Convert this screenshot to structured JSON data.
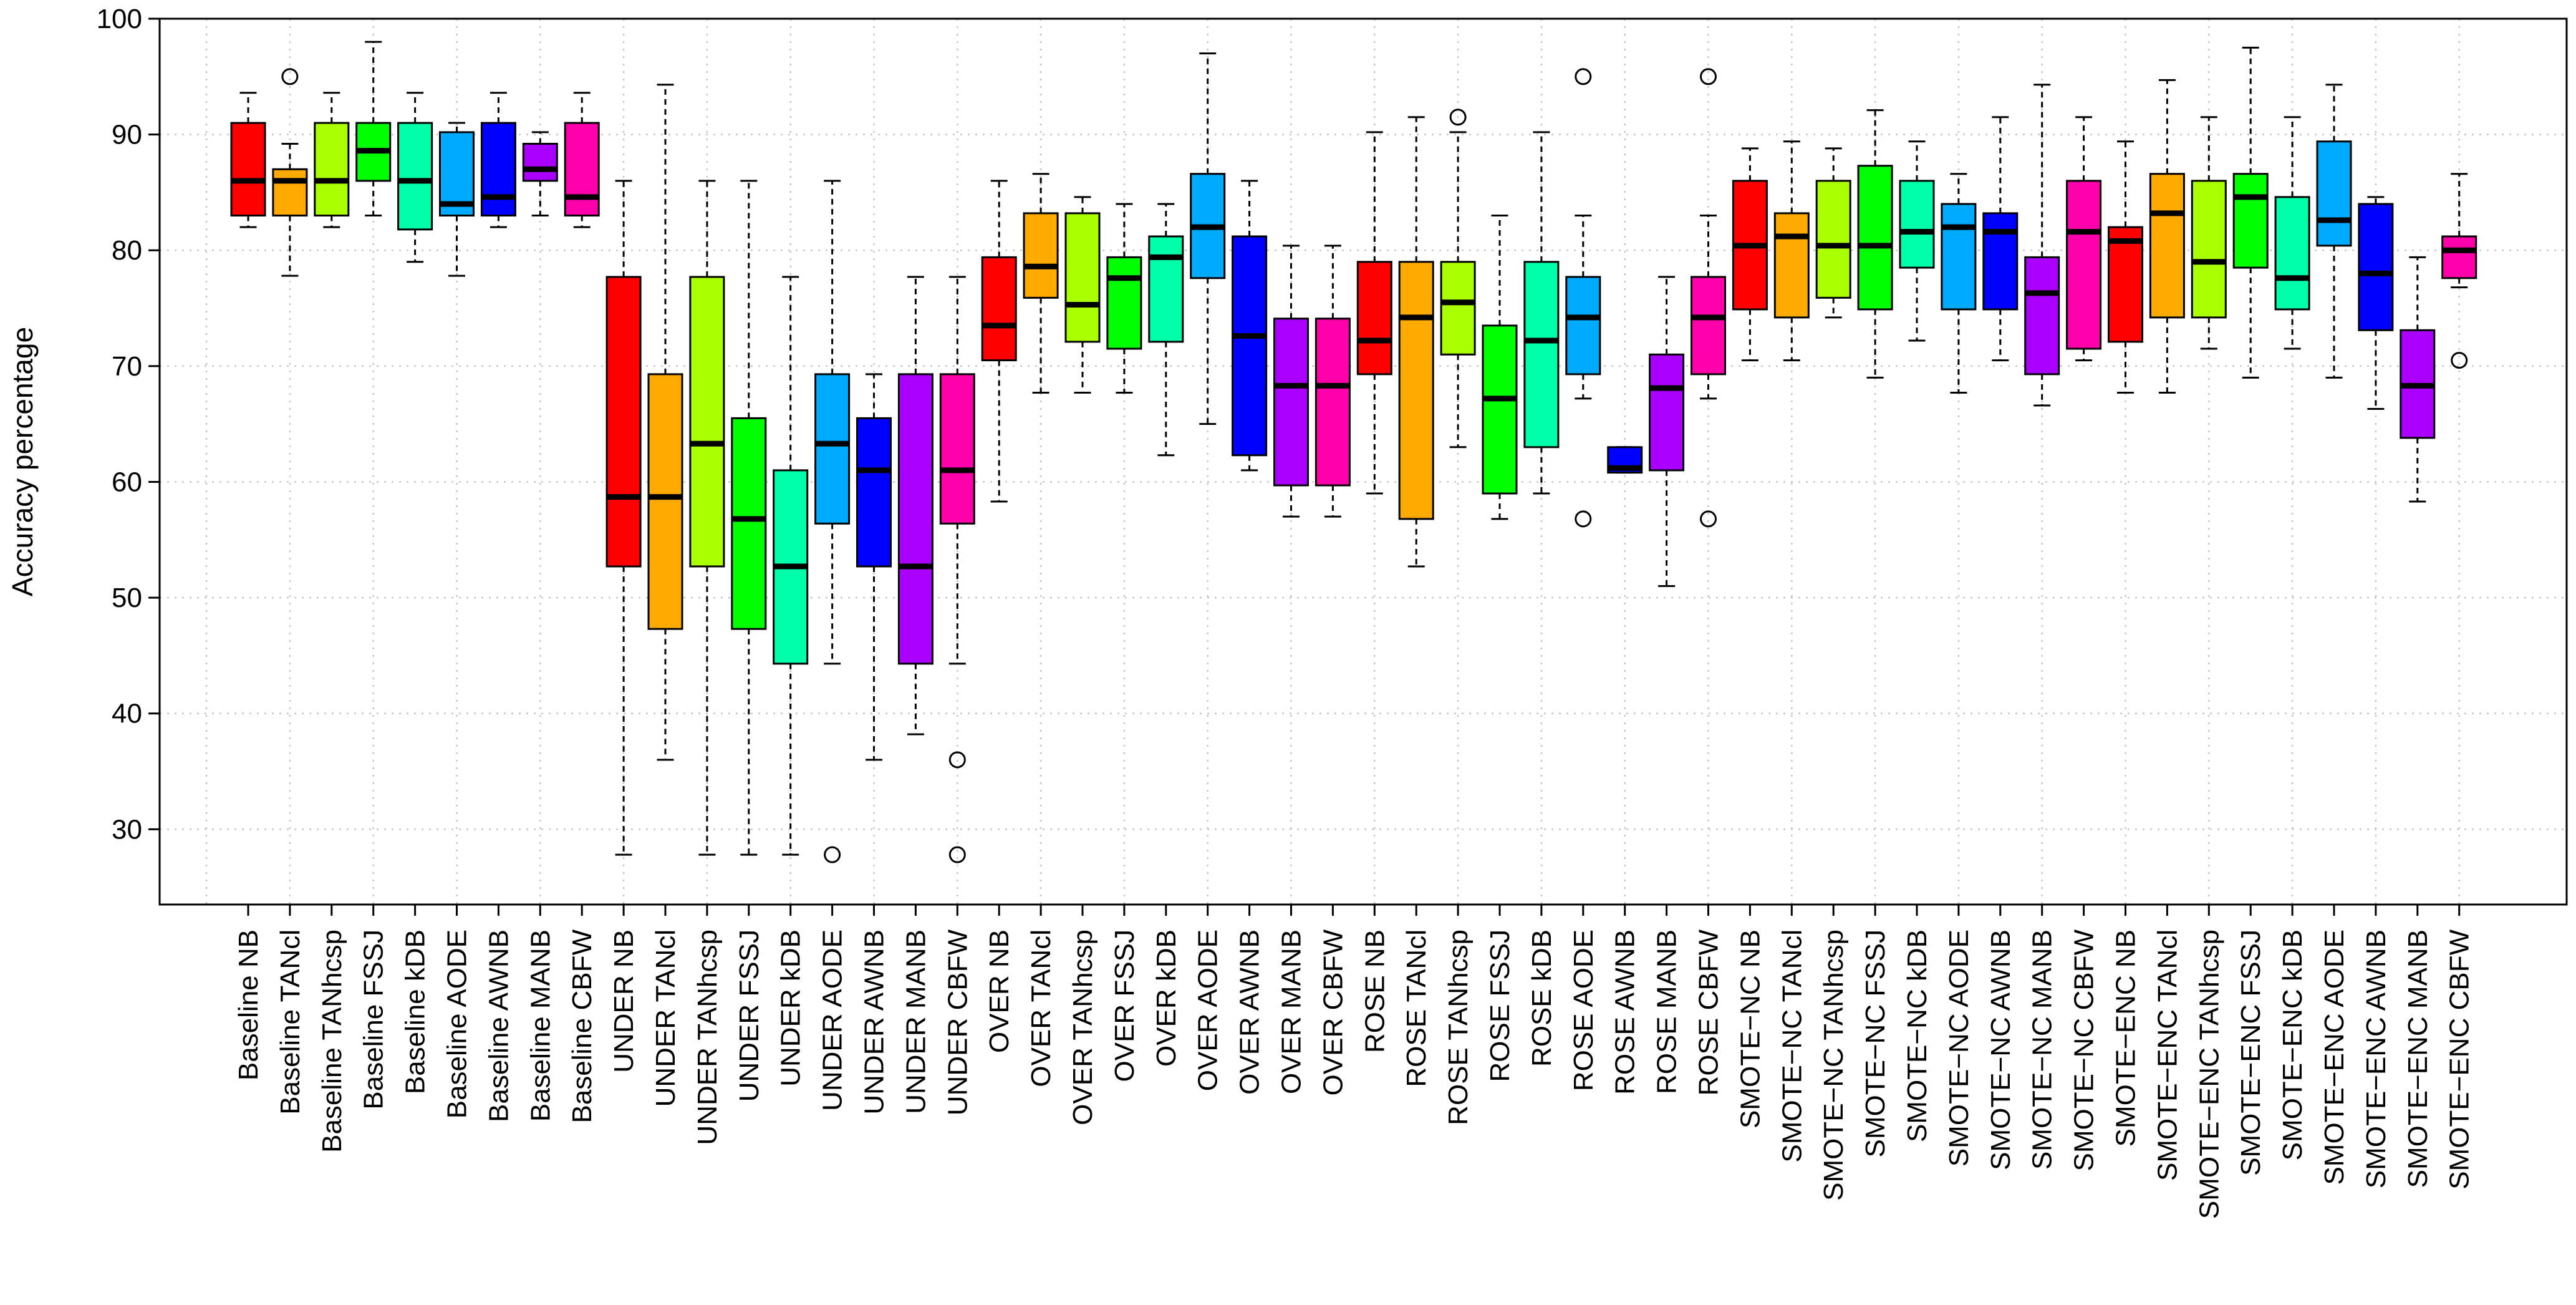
{
  "chart_data": {
    "type": "boxplot",
    "title": "",
    "xlabel": "",
    "ylabel": "Accuracy percentage",
    "ylim": [
      23.5,
      100
    ],
    "yticks": [
      30,
      40,
      50,
      60,
      70,
      80,
      90,
      100
    ],
    "grid": true,
    "boxes": [
      {
        "label": "Baseline NB",
        "color": "#FF0000",
        "min": 82,
        "q1": 83,
        "median": 86,
        "q3": 91,
        "max": 93.6,
        "outliers": []
      },
      {
        "label": "Baseline TANcl",
        "color": "#FFAA00",
        "min": 77.8,
        "q1": 83,
        "median": 86,
        "q3": 87,
        "max": 89.2,
        "outliers": [
          95
        ]
      },
      {
        "label": "Baseline TANhcsp",
        "color": "#AAFF00",
        "min": 82,
        "q1": 83,
        "median": 86,
        "q3": 91,
        "max": 93.6,
        "outliers": []
      },
      {
        "label": "Baseline FSSJ",
        "color": "#00FF00",
        "min": 83,
        "q1": 86,
        "median": 88.6,
        "q3": 91,
        "max": 98,
        "outliers": []
      },
      {
        "label": "Baseline kDB",
        "color": "#00FFAA",
        "min": 79,
        "q1": 81.8,
        "median": 86,
        "q3": 91,
        "max": 93.6,
        "outliers": []
      },
      {
        "label": "Baseline AODE",
        "color": "#00AAFF",
        "min": 77.8,
        "q1": 83,
        "median": 84,
        "q3": 90.2,
        "max": 91,
        "outliers": []
      },
      {
        "label": "Baseline AWNB",
        "color": "#0000FF",
        "min": 82,
        "q1": 83,
        "median": 84.6,
        "q3": 91,
        "max": 93.6,
        "outliers": []
      },
      {
        "label": "Baseline MANB",
        "color": "#AA00FF",
        "min": 83,
        "q1": 86,
        "median": 87,
        "q3": 89.2,
        "max": 90.2,
        "outliers": []
      },
      {
        "label": "Baseline CBFW",
        "color": "#FF00AA",
        "min": 82,
        "q1": 83,
        "median": 84.6,
        "q3": 91,
        "max": 93.6,
        "outliers": []
      },
      {
        "label": "UNDER NB",
        "color": "#FF0000",
        "min": 27.8,
        "q1": 52.7,
        "median": 58.7,
        "q3": 77.7,
        "max": 86,
        "outliers": []
      },
      {
        "label": "UNDER TANcl",
        "color": "#FFAA00",
        "min": 36,
        "q1": 47.3,
        "median": 58.7,
        "q3": 69.3,
        "max": 94.3,
        "outliers": []
      },
      {
        "label": "UNDER TANhcsp",
        "color": "#AAFF00",
        "min": 27.8,
        "q1": 52.7,
        "median": 63.3,
        "q3": 77.7,
        "max": 86,
        "outliers": []
      },
      {
        "label": "UNDER FSSJ",
        "color": "#00FF00",
        "min": 27.8,
        "q1": 47.3,
        "median": 56.8,
        "q3": 65.5,
        "max": 86,
        "outliers": []
      },
      {
        "label": "UNDER kDB",
        "color": "#00FFAA",
        "min": 27.8,
        "q1": 44.3,
        "median": 52.7,
        "q3": 61,
        "max": 77.7,
        "outliers": []
      },
      {
        "label": "UNDER AODE",
        "color": "#00AAFF",
        "min": 44.3,
        "q1": 56.4,
        "median": 63.3,
        "q3": 69.3,
        "max": 86,
        "outliers": [
          27.8
        ]
      },
      {
        "label": "UNDER AWNB",
        "color": "#0000FF",
        "min": 36,
        "q1": 52.7,
        "median": 61,
        "q3": 65.5,
        "max": 69.3,
        "outliers": []
      },
      {
        "label": "UNDER MANB",
        "color": "#AA00FF",
        "min": 38.2,
        "q1": 44.3,
        "median": 52.7,
        "q3": 69.3,
        "max": 77.7,
        "outliers": []
      },
      {
        "label": "UNDER CBFW",
        "color": "#FF00AA",
        "min": 44.3,
        "q1": 56.4,
        "median": 61,
        "q3": 69.3,
        "max": 77.7,
        "outliers": [
          36,
          27.8
        ]
      },
      {
        "label": "OVER NB",
        "color": "#FF0000",
        "min": 58.3,
        "q1": 70.5,
        "median": 73.5,
        "q3": 79.4,
        "max": 86,
        "outliers": []
      },
      {
        "label": "OVER TANcl",
        "color": "#FFAA00",
        "min": 67.7,
        "q1": 75.9,
        "median": 78.6,
        "q3": 83.2,
        "max": 86.6,
        "outliers": []
      },
      {
        "label": "OVER TANhcsp",
        "color": "#AAFF00",
        "min": 67.7,
        "q1": 72.1,
        "median": 75.3,
        "q3": 83.2,
        "max": 84.6,
        "outliers": []
      },
      {
        "label": "OVER FSSJ",
        "color": "#00FF00",
        "min": 67.7,
        "q1": 71.5,
        "median": 77.6,
        "q3": 79.4,
        "max": 84,
        "outliers": []
      },
      {
        "label": "OVER kDB",
        "color": "#00FFAA",
        "min": 62.3,
        "q1": 72.1,
        "median": 79.4,
        "q3": 81.2,
        "max": 84,
        "outliers": []
      },
      {
        "label": "OVER AODE",
        "color": "#00AAFF",
        "min": 65,
        "q1": 77.6,
        "median": 82,
        "q3": 86.6,
        "max": 97,
        "outliers": []
      },
      {
        "label": "OVER AWNB",
        "color": "#0000FF",
        "min": 61,
        "q1": 62.3,
        "median": 72.6,
        "q3": 81.2,
        "max": 86,
        "outliers": []
      },
      {
        "label": "OVER MANB",
        "color": "#AA00FF",
        "min": 57,
        "q1": 59.7,
        "median": 68.3,
        "q3": 74.1,
        "max": 80.4,
        "outliers": []
      },
      {
        "label": "OVER CBFW",
        "color": "#FF00AA",
        "min": 57,
        "q1": 59.7,
        "median": 68.3,
        "q3": 74.1,
        "max": 80.4,
        "outliers": []
      },
      {
        "label": "ROSE NB",
        "color": "#FF0000",
        "min": 59,
        "q1": 69.3,
        "median": 72.2,
        "q3": 79,
        "max": 90.2,
        "outliers": []
      },
      {
        "label": "ROSE TANcl",
        "color": "#FFAA00",
        "min": 52.7,
        "q1": 56.8,
        "median": 74.2,
        "q3": 79,
        "max": 91.5,
        "outliers": []
      },
      {
        "label": "ROSE TANhcsp",
        "color": "#AAFF00",
        "min": 63,
        "q1": 71,
        "median": 75.5,
        "q3": 79,
        "max": 90.2,
        "outliers": [
          91.5
        ]
      },
      {
        "label": "ROSE FSSJ",
        "color": "#00FF00",
        "min": 56.8,
        "q1": 59,
        "median": 67.2,
        "q3": 73.5,
        "max": 83,
        "outliers": []
      },
      {
        "label": "ROSE kDB",
        "color": "#00FFAA",
        "min": 59,
        "q1": 63,
        "median": 72.2,
        "q3": 79,
        "max": 90.2,
        "outliers": []
      },
      {
        "label": "ROSE AODE",
        "color": "#00AAFF",
        "min": 67.2,
        "q1": 69.3,
        "median": 74.2,
        "q3": 77.7,
        "max": 83,
        "outliers": [
          95,
          56.8
        ]
      },
      {
        "label": "ROSE AWNB",
        "color": "#0000FF",
        "min": 60.8,
        "q1": 60.8,
        "median": 61.2,
        "q3": 63,
        "max": 63,
        "outliers": []
      },
      {
        "label": "ROSE MANB",
        "color": "#AA00FF",
        "min": 51,
        "q1": 61,
        "median": 68.1,
        "q3": 71,
        "max": 77.7,
        "outliers": []
      },
      {
        "label": "ROSE CBFW",
        "color": "#FF00AA",
        "min": 67.2,
        "q1": 69.3,
        "median": 74.2,
        "q3": 77.7,
        "max": 83,
        "outliers": [
          95,
          56.8
        ]
      },
      {
        "label": "SMOTE−NC NB",
        "color": "#FF0000",
        "min": 70.5,
        "q1": 74.9,
        "median": 80.4,
        "q3": 86,
        "max": 88.8,
        "outliers": []
      },
      {
        "label": "SMOTE−NC TANcl",
        "color": "#FFAA00",
        "min": 70.5,
        "q1": 74.2,
        "median": 81.2,
        "q3": 83.2,
        "max": 89.4,
        "outliers": []
      },
      {
        "label": "SMOTE−NC TANhcsp",
        "color": "#AAFF00",
        "min": 74.2,
        "q1": 75.9,
        "median": 80.4,
        "q3": 86,
        "max": 88.8,
        "outliers": []
      },
      {
        "label": "SMOTE−NC FSSJ",
        "color": "#00FF00",
        "min": 69,
        "q1": 74.9,
        "median": 80.4,
        "q3": 87.3,
        "max": 92.1,
        "outliers": []
      },
      {
        "label": "SMOTE−NC kDB",
        "color": "#00FFAA",
        "min": 72.2,
        "q1": 78.5,
        "median": 81.6,
        "q3": 86,
        "max": 89.4,
        "outliers": []
      },
      {
        "label": "SMOTE−NC AODE",
        "color": "#00AAFF",
        "min": 67.7,
        "q1": 74.9,
        "median": 82,
        "q3": 84,
        "max": 86.6,
        "outliers": []
      },
      {
        "label": "SMOTE−NC AWNB",
        "color": "#0000FF",
        "min": 70.5,
        "q1": 74.9,
        "median": 81.6,
        "q3": 83.2,
        "max": 91.5,
        "outliers": []
      },
      {
        "label": "SMOTE−NC MANB",
        "color": "#AA00FF",
        "min": 66.6,
        "q1": 69.3,
        "median": 76.3,
        "q3": 79.4,
        "max": 94.3,
        "outliers": []
      },
      {
        "label": "SMOTE−NC CBFW",
        "color": "#FF00AA",
        "min": 70.5,
        "q1": 71.5,
        "median": 81.6,
        "q3": 86,
        "max": 91.5,
        "outliers": []
      },
      {
        "label": "SMOTE−ENC NB",
        "color": "#FF0000",
        "min": 67.7,
        "q1": 72.1,
        "median": 80.8,
        "q3": 82,
        "max": 89.4,
        "outliers": []
      },
      {
        "label": "SMOTE−ENC TANcl",
        "color": "#FFAA00",
        "min": 67.7,
        "q1": 74.2,
        "median": 83.2,
        "q3": 86.6,
        "max": 94.7,
        "outliers": []
      },
      {
        "label": "SMOTE−ENC TANhcsp",
        "color": "#AAFF00",
        "min": 71.5,
        "q1": 74.2,
        "median": 79,
        "q3": 86,
        "max": 91.5,
        "outliers": []
      },
      {
        "label": "SMOTE−ENC FSSJ",
        "color": "#00FF00",
        "min": 69,
        "q1": 78.5,
        "median": 84.6,
        "q3": 86.6,
        "max": 97.5,
        "outliers": []
      },
      {
        "label": "SMOTE−ENC kDB",
        "color": "#00FFAA",
        "min": 71.5,
        "q1": 74.9,
        "median": 77.6,
        "q3": 84.6,
        "max": 91.5,
        "outliers": []
      },
      {
        "label": "SMOTE−ENC AODE",
        "color": "#00AAFF",
        "min": 69,
        "q1": 80.4,
        "median": 82.6,
        "q3": 89.4,
        "max": 94.3,
        "outliers": []
      },
      {
        "label": "SMOTE−ENC AWNB",
        "color": "#0000FF",
        "min": 66.3,
        "q1": 73.1,
        "median": 78,
        "q3": 84,
        "max": 84.6,
        "outliers": []
      },
      {
        "label": "SMOTE−ENC MANB",
        "color": "#AA00FF",
        "min": 58.3,
        "q1": 63.8,
        "median": 68.3,
        "q3": 73.1,
        "max": 79.4,
        "outliers": []
      },
      {
        "label": "SMOTE−ENC CBFW",
        "color": "#FF00AA",
        "min": 76.8,
        "q1": 77.6,
        "median": 80,
        "q3": 81.2,
        "max": 86.6,
        "outliers": [
          70.5
        ]
      }
    ]
  }
}
